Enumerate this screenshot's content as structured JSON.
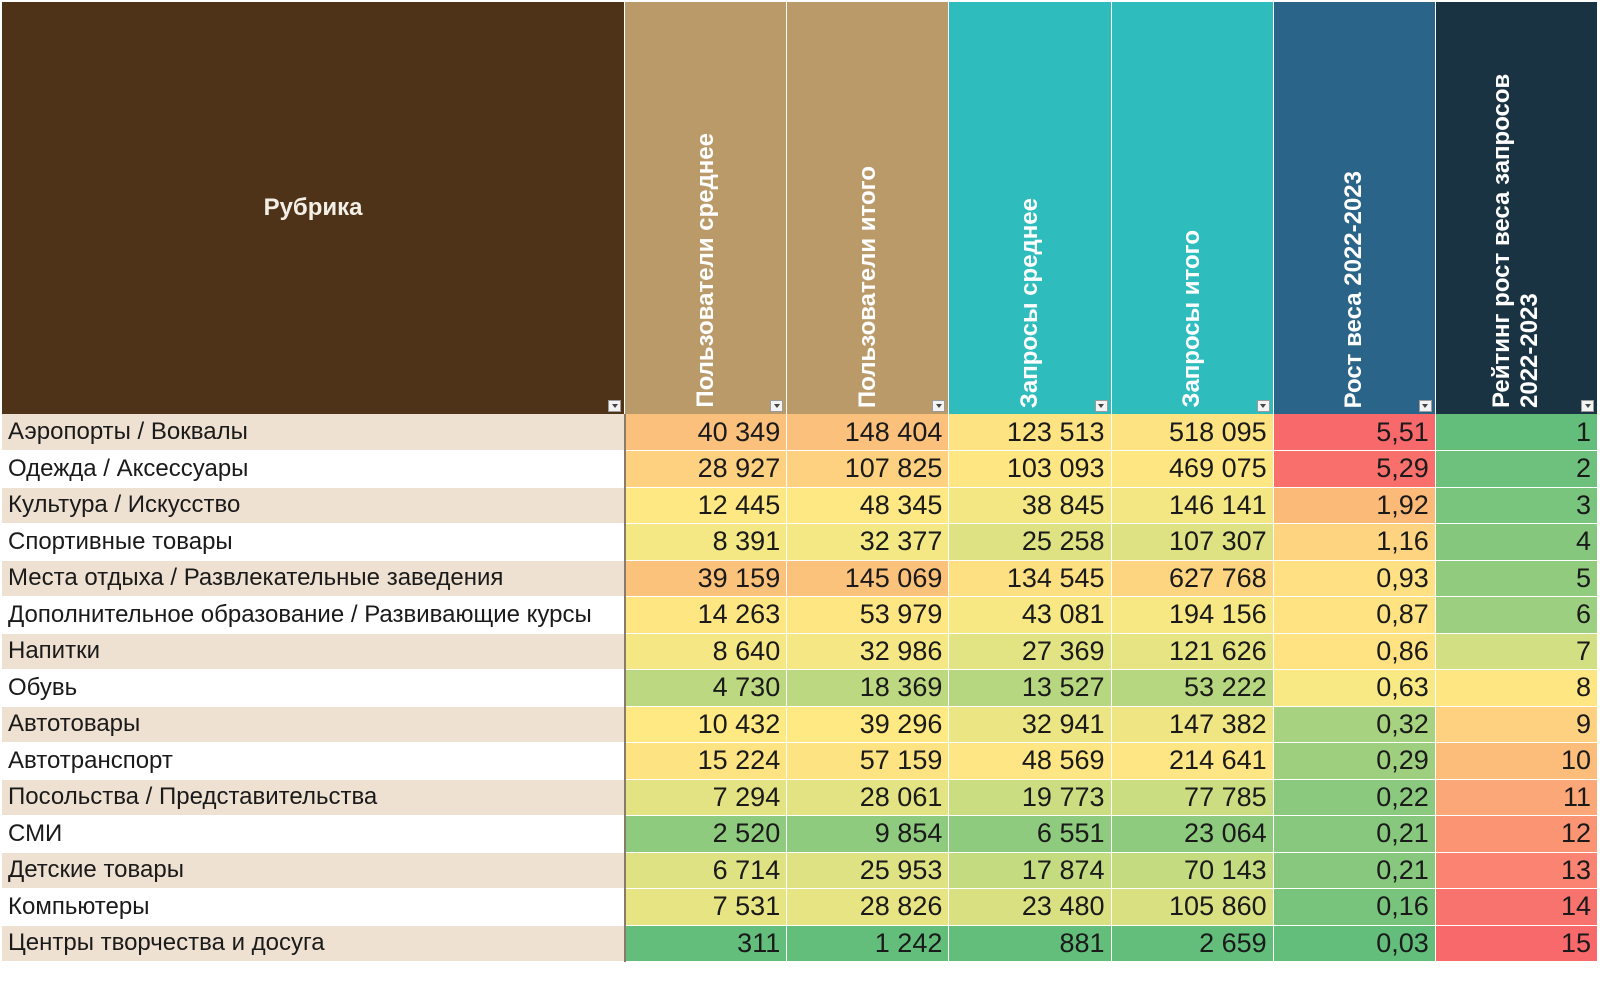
{
  "table": {
    "headers": [
      {
        "label": "Рубрика",
        "bg": "#4e3318"
      },
      {
        "label": "Пользователи среднее",
        "bg": "#bb9a6a"
      },
      {
        "label": "Пользователи итого",
        "bg": "#bb9a6a"
      },
      {
        "label": "Запросы среднее",
        "bg": "#2ebcbc"
      },
      {
        "label": "Запросы итого",
        "bg": "#2ebcbc"
      },
      {
        "label": "Рост веса 2022-2023",
        "bg": "#2a6488"
      },
      {
        "label": "Рейтинг рост веса запросов 2022-2023",
        "bg": "#1a3342"
      }
    ],
    "rows": [
      {
        "name": "Аэропорты / Воквалы",
        "cells": [
          {
            "text": "40 349",
            "color": "#fbc07b"
          },
          {
            "text": "148 404",
            "color": "#fbc07b"
          },
          {
            "text": "123 513",
            "color": "#fde382"
          },
          {
            "text": "518 095",
            "color": "#fde382"
          },
          {
            "text": "5,51",
            "color": "#f8696b"
          },
          {
            "text": "1",
            "color": "#63be7b"
          }
        ]
      },
      {
        "name": "Одежда / Аксессуары",
        "cells": [
          {
            "text": "28 927",
            "color": "#fdd17f"
          },
          {
            "text": "107 825",
            "color": "#fdd17f"
          },
          {
            "text": "103 093",
            "color": "#fee683"
          },
          {
            "text": "469 075",
            "color": "#fee683"
          },
          {
            "text": "5,29",
            "color": "#f86f6c"
          },
          {
            "text": "2",
            "color": "#6ec17c"
          }
        ]
      },
      {
        "name": "Культура / Искусство",
        "cells": [
          {
            "text": "12 445",
            "color": "#fee883"
          },
          {
            "text": "48 345",
            "color": "#fee883"
          },
          {
            "text": "38 845",
            "color": "#f2e783"
          },
          {
            "text": "146 141",
            "color": "#f2e783"
          },
          {
            "text": "1,92",
            "color": "#fcba79"
          },
          {
            "text": "3",
            "color": "#7ac57d"
          }
        ]
      },
      {
        "name": "Спортивные товары",
        "cells": [
          {
            "text": "8 391",
            "color": "#f4e884"
          },
          {
            "text": "32 377",
            "color": "#f4e884"
          },
          {
            "text": "25 258",
            "color": "#dfe282"
          },
          {
            "text": "107 307",
            "color": "#dfe282"
          },
          {
            "text": "1,16",
            "color": "#fed481"
          },
          {
            "text": "4",
            "color": "#85c87d"
          }
        ]
      },
      {
        "name": "Места отдыха / Развлекательные заведения",
        "cells": [
          {
            "text": "39 159",
            "color": "#fbc27b"
          },
          {
            "text": "145 069",
            "color": "#fbc27b"
          },
          {
            "text": "134 545",
            "color": "#fde082"
          },
          {
            "text": "627 768",
            "color": "#fdd580"
          },
          {
            "text": "0,93",
            "color": "#ffe083"
          },
          {
            "text": "5",
            "color": "#91cc7e"
          }
        ]
      },
      {
        "name": "Дополнительное образование / Развивающие курсы",
        "cells": [
          {
            "text": "14 263",
            "color": "#fee683"
          },
          {
            "text": "53 979",
            "color": "#fee683"
          },
          {
            "text": "43 081",
            "color": "#f7e884"
          },
          {
            "text": "194 156",
            "color": "#f7e884"
          },
          {
            "text": "0,87",
            "color": "#ffe383"
          },
          {
            "text": "6",
            "color": "#9ccf7f"
          }
        ]
      },
      {
        "name": "Напитки",
        "cells": [
          {
            "text": "8 640",
            "color": "#f5e884"
          },
          {
            "text": "32 986",
            "color": "#f5e884"
          },
          {
            "text": "27 369",
            "color": "#e2e383"
          },
          {
            "text": "121 626",
            "color": "#e6e483"
          },
          {
            "text": "0,86",
            "color": "#ffe383"
          },
          {
            "text": "7",
            "color": "#d2df82"
          }
        ]
      },
      {
        "name": "Обувь",
        "cells": [
          {
            "text": "4 730",
            "color": "#bcd880"
          },
          {
            "text": "18 369",
            "color": "#bcd880"
          },
          {
            "text": "13 527",
            "color": "#b6d67f"
          },
          {
            "text": "53 222",
            "color": "#b6d67f"
          },
          {
            "text": "0,63",
            "color": "#f8e984"
          },
          {
            "text": "8",
            "color": "#fee683"
          }
        ]
      },
      {
        "name": "Автотовары",
        "cells": [
          {
            "text": "10 432",
            "color": "#fee983"
          },
          {
            "text": "39 296",
            "color": "#fee983"
          },
          {
            "text": "32 941",
            "color": "#ebe683"
          },
          {
            "text": "147 382",
            "color": "#efe683"
          },
          {
            "text": "0,32",
            "color": "#a7d27f"
          },
          {
            "text": "9",
            "color": "#fdd17f"
          }
        ]
      },
      {
        "name": "Автотранспорт",
        "cells": [
          {
            "text": "15 224",
            "color": "#fee383"
          },
          {
            "text": "57 159",
            "color": "#fee383"
          },
          {
            "text": "48 569",
            "color": "#fde683"
          },
          {
            "text": "214 641",
            "color": "#fde683"
          },
          {
            "text": "0,29",
            "color": "#9ecf7f"
          },
          {
            "text": "10",
            "color": "#fcbc7a"
          }
        ]
      },
      {
        "name": "Посольства / Представительства",
        "cells": [
          {
            "text": "7 294",
            "color": "#e4e383"
          },
          {
            "text": "28 061",
            "color": "#e4e383"
          },
          {
            "text": "19 773",
            "color": "#cbdd81"
          },
          {
            "text": "77 785",
            "color": "#cbdd81"
          },
          {
            "text": "0,22",
            "color": "#8ac97e"
          },
          {
            "text": "11",
            "color": "#fba777"
          }
        ]
      },
      {
        "name": "СМИ",
        "cells": [
          {
            "text": "2 520",
            "color": "#8fcb7e"
          },
          {
            "text": "9 854",
            "color": "#8fcb7e"
          },
          {
            "text": "6 551",
            "color": "#8fcb7e"
          },
          {
            "text": "23 064",
            "color": "#8fcb7e"
          },
          {
            "text": "0,21",
            "color": "#87c87e"
          },
          {
            "text": "12",
            "color": "#fa9473"
          }
        ]
      },
      {
        "name": "Детские товары",
        "cells": [
          {
            "text": "6 714",
            "color": "#dfe282"
          },
          {
            "text": "25 953",
            "color": "#dfe282"
          },
          {
            "text": "17 874",
            "color": "#c4db80"
          },
          {
            "text": "70 143",
            "color": "#c4db80"
          },
          {
            "text": "0,21",
            "color": "#87c87e"
          },
          {
            "text": "13",
            "color": "#fa8371"
          }
        ]
      },
      {
        "name": "Компьютеры",
        "cells": [
          {
            "text": "7 531",
            "color": "#e7e483"
          },
          {
            "text": "28 826",
            "color": "#e7e483"
          },
          {
            "text": "23 480",
            "color": "#d8e082"
          },
          {
            "text": "105 860",
            "color": "#d8e082"
          },
          {
            "text": "0,16",
            "color": "#79c47d"
          },
          {
            "text": "14",
            "color": "#f8736d"
          }
        ]
      },
      {
        "name": "Центры творчества и досуга",
        "cells": [
          {
            "text": "311",
            "color": "#63be7b"
          },
          {
            "text": "1 242",
            "color": "#63be7b"
          },
          {
            "text": "881",
            "color": "#63be7b"
          },
          {
            "text": "2 659",
            "color": "#63be7b"
          },
          {
            "text": "0,03",
            "color": "#63be7b"
          },
          {
            "text": "15",
            "color": "#f8696b"
          }
        ]
      }
    ]
  }
}
